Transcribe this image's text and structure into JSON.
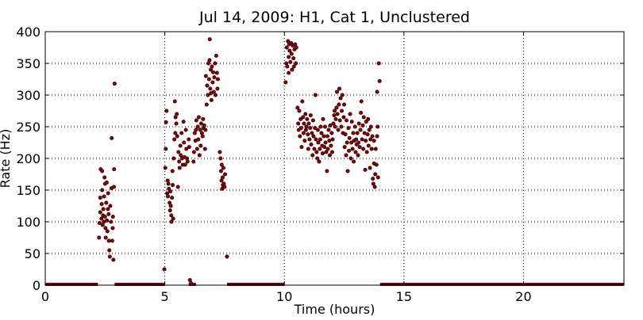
{
  "chart_data": {
    "type": "scatter",
    "title": "Jul 14, 2009: H1, Cat 1, Unclustered",
    "xlabel": "Time (hours)",
    "ylabel": "Rate (Hz)",
    "xlim": [
      0,
      24.2
    ],
    "ylim": [
      0,
      400
    ],
    "xticks": [
      0,
      5,
      10,
      15,
      20
    ],
    "yticks": [
      0,
      50,
      100,
      150,
      200,
      250,
      300,
      350,
      400
    ],
    "grid": true,
    "marker_color": "#8b0000",
    "marker_edge_color": "#000000",
    "zero_rate_segments": [
      [
        0,
        2.2
      ],
      [
        2.9,
        5.0
      ],
      [
        6.0,
        6.3
      ],
      [
        7.6,
        10.0
      ],
      [
        14.0,
        24.2
      ]
    ],
    "points": [
      [
        2.25,
        75
      ],
      [
        2.27,
        98
      ],
      [
        2.3,
        115
      ],
      [
        2.3,
        138
      ],
      [
        2.32,
        183
      ],
      [
        2.35,
        105
      ],
      [
        2.36,
        128
      ],
      [
        2.38,
        150
      ],
      [
        2.38,
        180
      ],
      [
        2.4,
        95
      ],
      [
        2.42,
        110
      ],
      [
        2.43,
        120
      ],
      [
        2.45,
        100
      ],
      [
        2.46,
        140
      ],
      [
        2.48,
        170
      ],
      [
        2.5,
        160
      ],
      [
        2.5,
        108
      ],
      [
        2.52,
        90
      ],
      [
        2.53,
        75
      ],
      [
        2.55,
        130
      ],
      [
        2.57,
        162
      ],
      [
        2.58,
        102
      ],
      [
        2.6,
        85
      ],
      [
        2.62,
        120
      ],
      [
        2.63,
        145
      ],
      [
        2.65,
        112
      ],
      [
        2.66,
        70
      ],
      [
        2.68,
        55
      ],
      [
        2.7,
        45
      ],
      [
        2.72,
        125
      ],
      [
        2.75,
        100
      ],
      [
        2.77,
        153
      ],
      [
        2.78,
        232
      ],
      [
        2.8,
        70
      ],
      [
        2.82,
        90
      ],
      [
        2.83,
        108
      ],
      [
        2.85,
        40
      ],
      [
        2.87,
        155
      ],
      [
        2.88,
        183
      ],
      [
        2.9,
        318
      ],
      [
        4.98,
        25
      ],
      [
        5.02,
        185
      ],
      [
        5.04,
        215
      ],
      [
        5.05,
        257
      ],
      [
        5.07,
        275
      ],
      [
        5.1,
        145
      ],
      [
        5.12,
        165
      ],
      [
        5.13,
        140
      ],
      [
        5.15,
        160
      ],
      [
        5.17,
        152
      ],
      [
        5.2,
        130
      ],
      [
        5.22,
        118
      ],
      [
        5.23,
        148
      ],
      [
        5.25,
        125
      ],
      [
        5.27,
        110
      ],
      [
        5.28,
        100
      ],
      [
        5.3,
        138
      ],
      [
        5.32,
        180
      ],
      [
        5.33,
        158
      ],
      [
        5.35,
        105
      ],
      [
        5.37,
        200
      ],
      [
        5.4,
        230
      ],
      [
        5.42,
        290
      ],
      [
        5.44,
        240
      ],
      [
        5.45,
        265
      ],
      [
        5.48,
        255
      ],
      [
        5.5,
        270
      ],
      [
        5.52,
        235
      ],
      [
        5.55,
        155
      ],
      [
        5.57,
        210
      ],
      [
        5.6,
        195
      ],
      [
        5.62,
        185
      ],
      [
        5.65,
        220
      ],
      [
        5.67,
        205
      ],
      [
        5.7,
        240
      ],
      [
        5.72,
        200
      ],
      [
        5.75,
        190
      ],
      [
        5.78,
        258
      ],
      [
        5.8,
        225
      ],
      [
        5.82,
        202
      ],
      [
        5.85,
        190
      ],
      [
        5.88,
        245
      ],
      [
        5.9,
        215
      ],
      [
        5.93,
        200
      ],
      [
        5.95,
        195
      ],
      [
        6.0,
        230
      ],
      [
        6.02,
        218
      ],
      [
        6.05,
        8
      ],
      [
        6.1,
        3
      ],
      [
        6.2,
        195
      ],
      [
        6.22,
        210
      ],
      [
        6.25,
        240
      ],
      [
        6.28,
        228
      ],
      [
        6.3,
        245
      ],
      [
        6.32,
        260
      ],
      [
        6.35,
        215
      ],
      [
        6.38,
        250
      ],
      [
        6.4,
        230
      ],
      [
        6.42,
        265
      ],
      [
        6.45,
        205
      ],
      [
        6.48,
        245
      ],
      [
        6.5,
        220
      ],
      [
        6.52,
        255
      ],
      [
        6.55,
        240
      ],
      [
        6.58,
        235
      ],
      [
        6.6,
        262
      ],
      [
        6.62,
        248
      ],
      [
        6.65,
        252
      ],
      [
        6.68,
        215
      ],
      [
        6.7,
        245
      ],
      [
        6.72,
        330
      ],
      [
        6.75,
        285
      ],
      [
        6.77,
        315
      ],
      [
        6.8,
        300
      ],
      [
        6.82,
        350
      ],
      [
        6.85,
        325
      ],
      [
        6.87,
        355
      ],
      [
        6.9,
        310
      ],
      [
        6.92,
        340
      ],
      [
        6.95,
        292
      ],
      [
        6.97,
        345
      ],
      [
        7.0,
        320
      ],
      [
        7.02,
        336
      ],
      [
        7.05,
        305
      ],
      [
        7.07,
        328
      ],
      [
        7.1,
        350
      ],
      [
        7.12,
        300
      ],
      [
        7.15,
        362
      ],
      [
        7.18,
        335
      ],
      [
        7.2,
        310
      ],
      [
        7.22,
        325
      ],
      [
        6.88,
        388
      ],
      [
        6.93,
        303
      ],
      [
        7.3,
        210
      ],
      [
        7.33,
        200
      ],
      [
        7.35,
        180
      ],
      [
        7.37,
        165
      ],
      [
        7.38,
        190
      ],
      [
        7.4,
        152
      ],
      [
        7.42,
        170
      ],
      [
        7.43,
        158
      ],
      [
        7.45,
        185
      ],
      [
        7.47,
        160
      ],
      [
        7.5,
        155
      ],
      [
        7.52,
        175
      ],
      [
        7.6,
        45
      ],
      [
        10.05,
        320
      ],
      [
        10.08,
        350
      ],
      [
        10.1,
        375
      ],
      [
        10.12,
        345
      ],
      [
        10.15,
        385
      ],
      [
        10.18,
        360
      ],
      [
        10.2,
        380
      ],
      [
        10.22,
        370
      ],
      [
        10.25,
        352
      ],
      [
        10.28,
        382
      ],
      [
        10.3,
        365
      ],
      [
        10.32,
        340
      ],
      [
        10.35,
        378
      ],
      [
        10.38,
        358
      ],
      [
        10.4,
        345
      ],
      [
        10.42,
        372
      ],
      [
        10.45,
        380
      ],
      [
        10.48,
        350
      ],
      [
        10.5,
        375
      ],
      [
        10.18,
        335
      ],
      [
        10.55,
        280
      ],
      [
        10.58,
        255
      ],
      [
        10.6,
        245
      ],
      [
        10.62,
        275
      ],
      [
        10.65,
        235
      ],
      [
        10.68,
        262
      ],
      [
        10.7,
        248
      ],
      [
        10.72,
        218
      ],
      [
        10.75,
        290
      ],
      [
        10.78,
        265
      ],
      [
        10.8,
        240
      ],
      [
        10.82,
        255
      ],
      [
        10.85,
        228
      ],
      [
        10.88,
        270
      ],
      [
        10.9,
        245
      ],
      [
        10.92,
        250
      ],
      [
        10.95,
        262
      ],
      [
        10.98,
        238
      ],
      [
        11.0,
        215
      ],
      [
        11.02,
        255
      ],
      [
        11.05,
        230
      ],
      [
        11.08,
        248
      ],
      [
        11.1,
        268
      ],
      [
        11.12,
        222
      ],
      [
        11.15,
        240
      ],
      [
        11.18,
        205
      ],
      [
        11.2,
        260
      ],
      [
        11.22,
        235
      ],
      [
        11.25,
        215
      ],
      [
        11.28,
        248
      ],
      [
        11.3,
        300
      ],
      [
        11.32,
        230
      ],
      [
        11.35,
        210
      ],
      [
        11.38,
        200
      ],
      [
        11.4,
        245
      ],
      [
        11.42,
        225
      ],
      [
        11.45,
        195
      ],
      [
        11.48,
        215
      ],
      [
        11.5,
        230
      ],
      [
        11.52,
        250
      ],
      [
        11.55,
        240
      ],
      [
        11.58,
        220
      ],
      [
        11.6,
        208
      ],
      [
        11.62,
        262
      ],
      [
        11.65,
        235
      ],
      [
        11.68,
        218
      ],
      [
        11.7,
        250
      ],
      [
        11.72,
        225
      ],
      [
        11.75,
        210
      ],
      [
        11.78,
        180
      ],
      [
        11.8,
        235
      ],
      [
        11.82,
        215
      ],
      [
        11.85,
        245
      ],
      [
        11.88,
        228
      ],
      [
        11.9,
        205
      ],
      [
        11.92,
        252
      ],
      [
        11.95,
        220
      ],
      [
        11.98,
        240
      ],
      [
        12.0,
        210
      ],
      [
        12.02,
        230
      ],
      [
        12.05,
        255
      ],
      [
        12.08,
        268
      ],
      [
        12.1,
        275
      ],
      [
        12.12,
        250
      ],
      [
        12.15,
        262
      ],
      [
        12.18,
        280
      ],
      [
        12.2,
        305
      ],
      [
        12.22,
        270
      ],
      [
        12.25,
        245
      ],
      [
        12.28,
        285
      ],
      [
        12.3,
        310
      ],
      [
        12.32,
        260
      ],
      [
        12.35,
        295
      ],
      [
        12.38,
        250
      ],
      [
        12.4,
        275
      ],
      [
        12.42,
        300
      ],
      [
        12.45,
        240
      ],
      [
        12.48,
        265
      ],
      [
        12.5,
        285
      ],
      [
        12.52,
        218
      ],
      [
        12.55,
        238
      ],
      [
        12.58,
        205
      ],
      [
        12.6,
        260
      ],
      [
        12.62,
        225
      ],
      [
        12.65,
        180
      ],
      [
        12.68,
        248
      ],
      [
        12.7,
        212
      ],
      [
        12.72,
        232
      ],
      [
        12.75,
        270
      ],
      [
        12.78,
        200
      ],
      [
        12.8,
        225
      ],
      [
        12.82,
        258
      ],
      [
        12.85,
        215
      ],
      [
        12.88,
        240
      ],
      [
        12.9,
        195
      ],
      [
        12.92,
        228
      ],
      [
        12.95,
        250
      ],
      [
        12.98,
        210
      ],
      [
        13.0,
        230
      ],
      [
        13.02,
        222
      ],
      [
        13.05,
        240
      ],
      [
        13.08,
        205
      ],
      [
        13.1,
        225
      ],
      [
        13.12,
        255
      ],
      [
        13.15,
        218
      ],
      [
        13.18,
        245
      ],
      [
        13.2,
        272
      ],
      [
        13.22,
        290
      ],
      [
        13.25,
        230
      ],
      [
        13.28,
        252
      ],
      [
        13.3,
        215
      ],
      [
        13.32,
        265
      ],
      [
        13.35,
        240
      ],
      [
        13.38,
        182
      ],
      [
        13.4,
        228
      ],
      [
        13.42,
        258
      ],
      [
        13.45,
        210
      ],
      [
        13.48,
        238
      ],
      [
        13.5,
        262
      ],
      [
        13.52,
        220
      ],
      [
        13.55,
        245
      ],
      [
        13.58,
        185
      ],
      [
        13.6,
        230
      ],
      [
        13.62,
        250
      ],
      [
        13.65,
        215
      ],
      [
        13.68,
        235
      ],
      [
        13.7,
        168
      ],
      [
        13.72,
        160
      ],
      [
        13.75,
        192
      ],
      [
        13.78,
        155
      ],
      [
        13.8,
        175
      ],
      [
        13.82,
        215
      ],
      [
        13.85,
        190
      ],
      [
        13.88,
        235
      ],
      [
        13.9,
        250
      ],
      [
        13.92,
        170
      ],
      [
        13.95,
        350
      ],
      [
        13.98,
        322
      ],
      [
        13.88,
        305
      ],
      [
        13.75,
        228
      ]
    ]
  }
}
